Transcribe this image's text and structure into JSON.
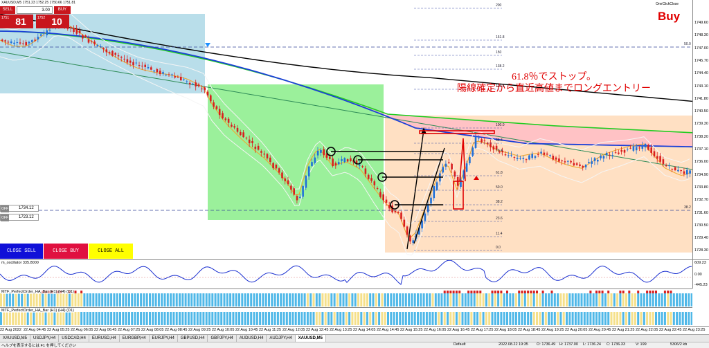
{
  "chart_header": {
    "symbol": "XAUUSD,M5",
    "ohlc": "1751.23 1752.25 1750.66 1751.81",
    "oneclick_close": "OneClickClose",
    "signal": "Buy"
  },
  "one_click": {
    "sell_label": "SELL",
    "lot": "3.00",
    "buy_label": "BUY",
    "sell_small": "1751",
    "sell_big": "81",
    "buy_small": "1752",
    "buy_big": "10"
  },
  "stop_inputs": [
    {
      "label": "OFF",
      "value": "1734.12"
    },
    {
      "label": "OFF",
      "value": "1723.12"
    }
  ],
  "close_buttons": {
    "close_sell": "CLOSE SELL",
    "close_buy": "CLOSE BUY",
    "close_all": "CLOSE ALL"
  },
  "annotation": {
    "line1": "61.8％でストップ。",
    "line2": "陽線確定から直近高値までロングエントリー"
  },
  "price_axis": [
    "1749.60",
    "1748.30",
    "1747.00",
    "1745.70",
    "1744.40",
    "1743.10",
    "1741.80",
    "1740.50",
    "1739.30",
    "1738.20",
    "1737.10",
    "1736.00",
    "1734.90",
    "1733.80",
    "1732.70",
    "1731.60",
    "1730.50",
    "1729.40",
    "1728.30",
    "1727.20"
  ],
  "fib_levels": [
    "200",
    "161.8",
    "150",
    "138.2",
    "123.6",
    "100.0",
    "86.4",
    "76.4",
    "61.8",
    "50.0",
    "38.2",
    "23.6",
    "11.4",
    "0.0"
  ],
  "fib_side_labels": [
    "50.0",
    "38.2"
  ],
  "oscillator": {
    "label": "m_oscillator 335.8000",
    "ticks": [
      "609.23",
      "0.00",
      "-445.23"
    ]
  },
  "ha_panels": [
    {
      "label": "MTF_PerfectOrder_HA_Bar (H1) (H4) (D1)"
    },
    {
      "label": "MTF_PerfectOrder_HA_Bar (H1) (H4) (D1)"
    }
  ],
  "time_axis": [
    "22 Aug 2022",
    "22 Aug 04:45",
    "22 Aug 05:25",
    "22 Aug 06:05",
    "22 Aug 06:45",
    "22 Aug 07:25",
    "22 Aug 08:05",
    "22 Aug 08:45",
    "22 Aug 09:25",
    "22 Aug 10:05",
    "22 Aug 10:45",
    "22 Aug 11:25",
    "22 Aug 12:05",
    "22 Aug 12:45",
    "22 Aug 13:25",
    "22 Aug 14:05",
    "22 Aug 14:45",
    "22 Aug 15:25",
    "22 Aug 16:05",
    "22 Aug 16:45",
    "22 Aug 17:25",
    "22 Aug 18:05",
    "22 Aug 18:45",
    "22 Aug 19:25",
    "22 Aug 20:05",
    "22 Aug 20:45",
    "22 Aug 21:25",
    "22 Aug 22:05",
    "22 Aug 22:45",
    "22 Aug 23:25"
  ],
  "tabs": [
    "XAUUSD,M5",
    "USDJPY,H4",
    "USDCAD,H4",
    "EURUSD,H4",
    "EURGBP,H4",
    "EURJPY,H4",
    "GBPUSD,H4",
    "GBPJPY,H4",
    "AUDUSD,H4",
    "AUDJPY,H4",
    "XAUUSD,M5"
  ],
  "active_tab": 10,
  "status": {
    "help": "ヘルプを表示するには F1 を押してください",
    "profile": "Default",
    "datetime": "2022.08.22 19:35",
    "open": "O: 1736.49",
    "high": "H: 1737.00",
    "low": "L: 1736.24",
    "close": "C: 1736.33",
    "volume": "V: 199",
    "traffic": "5306/2 kb"
  },
  "colors": {
    "sell": "#c8161d",
    "buy": "#c8161d",
    "close_sell_bg": "#1010d8",
    "close_buy_bg": "#e01040",
    "close_all_bg": "#ffff00",
    "bull": "#1e6fd8",
    "bear": "#d81e1e",
    "zone_blue": "#add8e6",
    "zone_green": "#90ee90",
    "zone_orange": "#ffdab9",
    "annotation": "#e00000"
  }
}
